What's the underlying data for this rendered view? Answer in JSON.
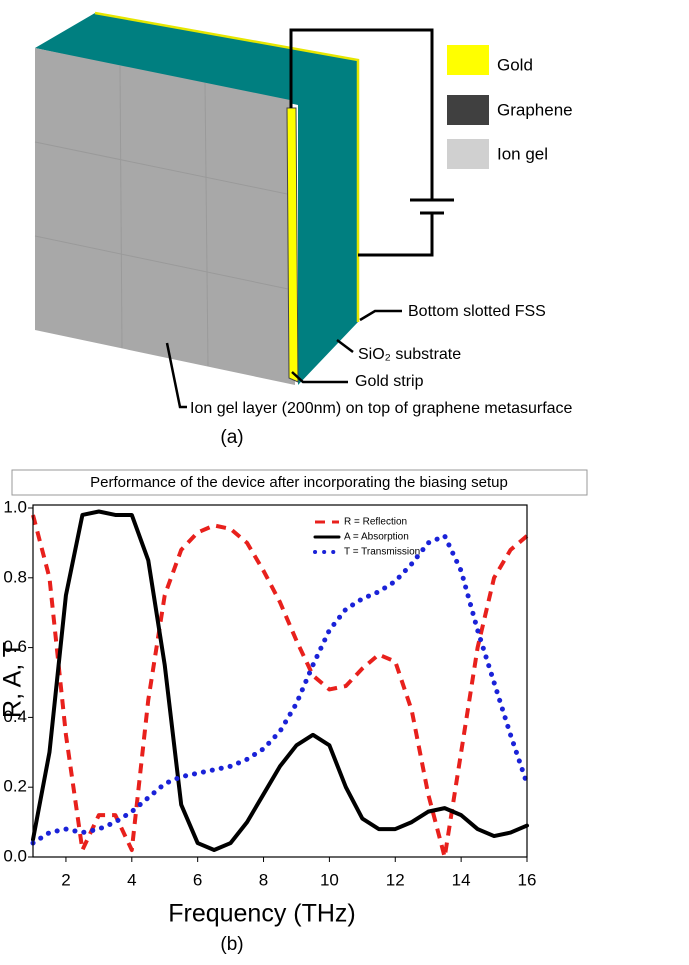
{
  "diagram": {
    "legend": [
      "Gold",
      "Graphene",
      "Ion gel"
    ],
    "labels": {
      "fss": "Bottom slotted FSS",
      "substrate": "SiO₂ substrate",
      "strip": "Gold strip",
      "iongel": "Ion gel layer (200nm) on top of graphene metasurface"
    },
    "caption": "(a)"
  },
  "chart_data": {
    "type": "line",
    "title": "Performance of the device after incorporating the biasing setup",
    "x_label": "Frequency (THz)",
    "y_label": "R, A, T",
    "caption": "(b)",
    "x": [
      1,
      1.5,
      2,
      2.5,
      3,
      3.5,
      4,
      4.5,
      5,
      5.5,
      6,
      6.5,
      7,
      7.5,
      8,
      8.5,
      9,
      9.5,
      10,
      10.5,
      11,
      11.5,
      12,
      12.5,
      13,
      13.5,
      14,
      14.5,
      15,
      15.5,
      16
    ],
    "series": [
      {
        "name": "R = Reflection",
        "color": "#e8201c",
        "style": "dashed",
        "values": [
          0.98,
          0.8,
          0.35,
          0.02,
          0.12,
          0.12,
          0.02,
          0.45,
          0.75,
          0.88,
          0.93,
          0.95,
          0.94,
          0.9,
          0.82,
          0.73,
          0.62,
          0.52,
          0.48,
          0.49,
          0.54,
          0.58,
          0.56,
          0.42,
          0.18,
          0.0,
          0.3,
          0.6,
          0.8,
          0.88,
          0.92
        ]
      },
      {
        "name": "A = Absorption",
        "color": "#000000",
        "style": "solid",
        "values": [
          0.05,
          0.3,
          0.75,
          0.98,
          0.99,
          0.98,
          0.98,
          0.85,
          0.55,
          0.15,
          0.04,
          0.02,
          0.04,
          0.1,
          0.18,
          0.26,
          0.32,
          0.35,
          0.32,
          0.2,
          0.11,
          0.08,
          0.08,
          0.1,
          0.13,
          0.14,
          0.12,
          0.08,
          0.06,
          0.07,
          0.09
        ]
      },
      {
        "name": "T = Transmission",
        "color": "#1a22d8",
        "style": "dotted",
        "values": [
          0.04,
          0.07,
          0.08,
          0.07,
          0.08,
          0.1,
          0.13,
          0.17,
          0.21,
          0.23,
          0.24,
          0.25,
          0.26,
          0.28,
          0.31,
          0.36,
          0.44,
          0.55,
          0.65,
          0.71,
          0.74,
          0.76,
          0.79,
          0.84,
          0.9,
          0.92,
          0.82,
          0.65,
          0.5,
          0.35,
          0.21
        ]
      }
    ],
    "xlim": [
      1,
      16
    ],
    "xticks": [
      2,
      4,
      6,
      8,
      10,
      12,
      14,
      16
    ],
    "ylim": [
      0,
      1
    ],
    "yticks": [
      {
        "value": 0,
        "label": "0.0"
      },
      0.2,
      0.4,
      0.6,
      0.8,
      {
        "value": 1,
        "label": "1.0"
      }
    ],
    "legend": "top"
  }
}
